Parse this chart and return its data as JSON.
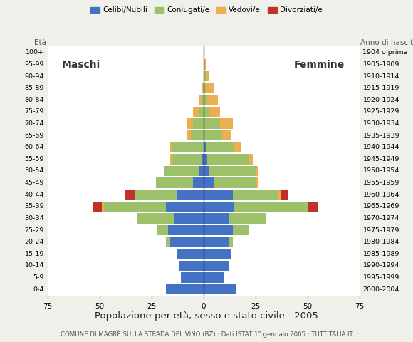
{
  "age_groups": [
    "0-4",
    "5-9",
    "10-14",
    "15-19",
    "20-24",
    "25-29",
    "30-34",
    "35-39",
    "40-44",
    "45-49",
    "50-54",
    "55-59",
    "60-64",
    "65-69",
    "70-74",
    "75-79",
    "80-84",
    "85-89",
    "90-94",
    "95-99",
    "100+"
  ],
  "birth_years": [
    "2000-2004",
    "1995-1999",
    "1990-1994",
    "1985-1989",
    "1980-1984",
    "1975-1979",
    "1970-1974",
    "1965-1969",
    "1960-1964",
    "1955-1959",
    "1950-1954",
    "1945-1949",
    "1940-1944",
    "1935-1939",
    "1930-1934",
    "1925-1929",
    "1920-1924",
    "1915-1919",
    "1910-1914",
    "1905-1909",
    "1904 o prima"
  ],
  "males": {
    "celibi": [
      18,
      11,
      12,
      13,
      16,
      17,
      14,
      18,
      13,
      5,
      2,
      1,
      0,
      0,
      0,
      0,
      0,
      0,
      0,
      0,
      0
    ],
    "coniugati": [
      0,
      0,
      0,
      0,
      2,
      5,
      18,
      30,
      20,
      18,
      17,
      14,
      15,
      6,
      5,
      2,
      1,
      0,
      0,
      0,
      0
    ],
    "vedovi": [
      0,
      0,
      0,
      0,
      0,
      0,
      0,
      1,
      0,
      0,
      0,
      1,
      1,
      2,
      3,
      3,
      1,
      1,
      0,
      0,
      0
    ],
    "divorziati": [
      0,
      0,
      0,
      0,
      0,
      0,
      0,
      4,
      5,
      0,
      0,
      0,
      0,
      0,
      0,
      0,
      0,
      0,
      0,
      0,
      0
    ]
  },
  "females": {
    "nubili": [
      16,
      10,
      12,
      13,
      12,
      14,
      12,
      15,
      14,
      5,
      3,
      2,
      1,
      0,
      0,
      0,
      0,
      0,
      0,
      0,
      0
    ],
    "coniugate": [
      0,
      0,
      0,
      0,
      2,
      8,
      18,
      35,
      22,
      20,
      22,
      20,
      14,
      9,
      8,
      3,
      2,
      1,
      1,
      0,
      0
    ],
    "vedove": [
      0,
      0,
      0,
      0,
      0,
      0,
      0,
      0,
      1,
      1,
      1,
      2,
      3,
      4,
      6,
      5,
      5,
      4,
      2,
      1,
      0
    ],
    "divorziate": [
      0,
      0,
      0,
      0,
      0,
      0,
      0,
      5,
      4,
      0,
      0,
      0,
      0,
      0,
      0,
      0,
      0,
      0,
      0,
      0,
      0
    ]
  },
  "colors": {
    "celibi": "#4472C4",
    "coniugati": "#9DC16A",
    "vedovi": "#EDAE4F",
    "divorziati": "#C0312A"
  },
  "xlim": 75,
  "title": "Popolazione per età, sesso e stato civile - 2005",
  "subtitle": "COMUNE DI MAGRÈ SULLA STRADA DEL VINO (BZ) · Dati ISTAT 1° gennaio 2005 · TUTTITALIA.IT",
  "label_eta": "Età",
  "label_anno": "Anno di nascita",
  "label_maschi": "Maschi",
  "label_femmine": "Femmine",
  "bg_color": "#f0f0eb",
  "plot_bg": "#ffffff",
  "legend_labels": [
    "Celibi/Nubili",
    "Coniugati/e",
    "Vedovi/e",
    "Divorziati/e"
  ]
}
